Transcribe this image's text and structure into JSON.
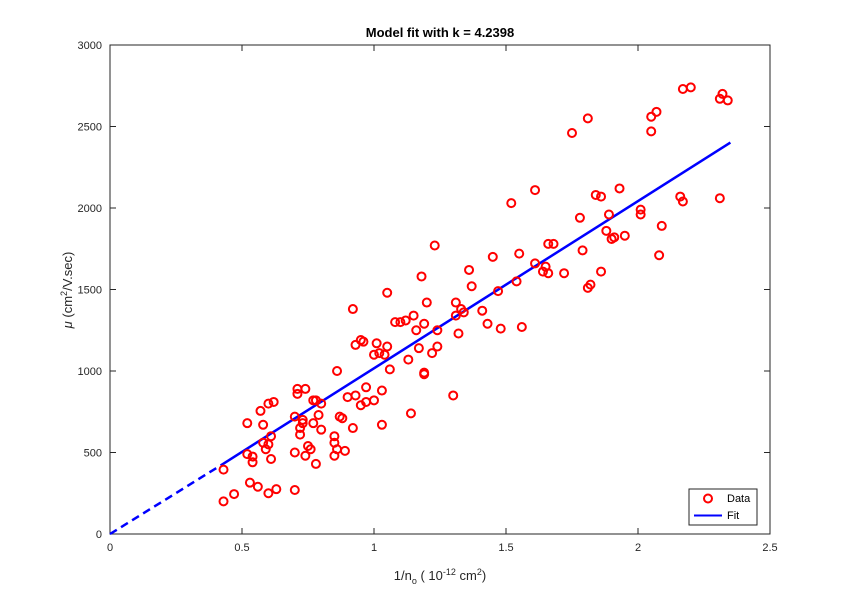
{
  "chart_data": {
    "type": "scatter",
    "title": "Model fit with k = 4.2398",
    "xlabel": {
      "main": "1/n",
      "sub": "o",
      "rest": " ( 10",
      "sup": "-12",
      "unit": " cm",
      "unit_sup": "2",
      "close": ")"
    },
    "ylabel": {
      "mu": "μ",
      "main": " (cm",
      "sup": "2",
      "rest": "/V.sec)"
    },
    "xlim": [
      0,
      2.5
    ],
    "ylim": [
      0,
      3000
    ],
    "xticks": [
      0,
      0.5,
      1,
      1.5,
      2,
      2.5
    ],
    "xtick_labels": [
      "0",
      "0.5",
      "1",
      "1.5",
      "2",
      "2.5"
    ],
    "yticks": [
      0,
      500,
      1000,
      1500,
      2000,
      2500,
      3000
    ],
    "ytick_labels": [
      "0",
      "500",
      "1000",
      "1500",
      "2000",
      "2500",
      "3000"
    ],
    "legend": {
      "position": "bottom-right",
      "entries": [
        "Data",
        "Fit"
      ]
    },
    "colors": {
      "data": "#ff0000",
      "fit": "#0000ff"
    },
    "series": [
      {
        "name": "Data",
        "marker": "circle",
        "points": [
          [
            0.43,
            200
          ],
          [
            0.43,
            395
          ],
          [
            0.47,
            245
          ],
          [
            0.52,
            490
          ],
          [
            0.52,
            680
          ],
          [
            0.53,
            315
          ],
          [
            0.54,
            440
          ],
          [
            0.54,
            475
          ],
          [
            0.56,
            290
          ],
          [
            0.57,
            755
          ],
          [
            0.58,
            560
          ],
          [
            0.58,
            670
          ],
          [
            0.59,
            520
          ],
          [
            0.6,
            550
          ],
          [
            0.6,
            800
          ],
          [
            0.6,
            250
          ],
          [
            0.61,
            600
          ],
          [
            0.61,
            460
          ],
          [
            0.62,
            810
          ],
          [
            0.63,
            275
          ],
          [
            0.7,
            720
          ],
          [
            0.7,
            500
          ],
          [
            0.7,
            270
          ],
          [
            0.71,
            860
          ],
          [
            0.71,
            890
          ],
          [
            0.72,
            650
          ],
          [
            0.72,
            610
          ],
          [
            0.73,
            680
          ],
          [
            0.73,
            700
          ],
          [
            0.74,
            890
          ],
          [
            0.74,
            480
          ],
          [
            0.75,
            540
          ],
          [
            0.76,
            520
          ],
          [
            0.77,
            680
          ],
          [
            0.77,
            820
          ],
          [
            0.78,
            430
          ],
          [
            0.78,
            820
          ],
          [
            0.79,
            730
          ],
          [
            0.8,
            800
          ],
          [
            0.8,
            640
          ],
          [
            0.85,
            480
          ],
          [
            0.85,
            600
          ],
          [
            0.85,
            560
          ],
          [
            0.86,
            1000
          ],
          [
            0.86,
            520
          ],
          [
            0.87,
            720
          ],
          [
            0.88,
            710
          ],
          [
            0.89,
            510
          ],
          [
            0.9,
            840
          ],
          [
            0.92,
            1380
          ],
          [
            0.92,
            650
          ],
          [
            0.93,
            850
          ],
          [
            0.93,
            1160
          ],
          [
            0.95,
            790
          ],
          [
            0.95,
            1190
          ],
          [
            0.96,
            1180
          ],
          [
            0.97,
            900
          ],
          [
            0.97,
            810
          ],
          [
            1.0,
            820
          ],
          [
            1.0,
            1100
          ],
          [
            1.01,
            1170
          ],
          [
            1.02,
            1110
          ],
          [
            1.03,
            880
          ],
          [
            1.03,
            670
          ],
          [
            1.04,
            1100
          ],
          [
            1.05,
            1480
          ],
          [
            1.05,
            1150
          ],
          [
            1.06,
            1010
          ],
          [
            1.08,
            1300
          ],
          [
            1.1,
            1300
          ],
          [
            1.12,
            1310
          ],
          [
            1.13,
            1070
          ],
          [
            1.14,
            740
          ],
          [
            1.15,
            1340
          ],
          [
            1.16,
            1250
          ],
          [
            1.17,
            1140
          ],
          [
            1.18,
            1580
          ],
          [
            1.19,
            980
          ],
          [
            1.19,
            990
          ],
          [
            1.19,
            1290
          ],
          [
            1.2,
            1420
          ],
          [
            1.22,
            1110
          ],
          [
            1.23,
            1770
          ],
          [
            1.24,
            1250
          ],
          [
            1.24,
            1150
          ],
          [
            1.3,
            850
          ],
          [
            1.31,
            1420
          ],
          [
            1.31,
            1340
          ],
          [
            1.32,
            1230
          ],
          [
            1.33,
            1380
          ],
          [
            1.34,
            1360
          ],
          [
            1.36,
            1620
          ],
          [
            1.37,
            1520
          ],
          [
            1.41,
            1370
          ],
          [
            1.43,
            1290
          ],
          [
            1.45,
            1700
          ],
          [
            1.47,
            1490
          ],
          [
            1.48,
            1260
          ],
          [
            1.52,
            2030
          ],
          [
            1.54,
            1550
          ],
          [
            1.55,
            1720
          ],
          [
            1.56,
            1270
          ],
          [
            1.61,
            2110
          ],
          [
            1.61,
            1660
          ],
          [
            1.64,
            1610
          ],
          [
            1.65,
            1640
          ],
          [
            1.66,
            1600
          ],
          [
            1.66,
            1780
          ],
          [
            1.68,
            1780
          ],
          [
            1.72,
            1600
          ],
          [
            1.75,
            2460
          ],
          [
            1.78,
            1940
          ],
          [
            1.79,
            1740
          ],
          [
            1.81,
            2550
          ],
          [
            1.81,
            1510
          ],
          [
            1.82,
            1530
          ],
          [
            1.84,
            2080
          ],
          [
            1.86,
            2070
          ],
          [
            1.86,
            1610
          ],
          [
            1.88,
            1860
          ],
          [
            1.89,
            1960
          ],
          [
            1.9,
            1810
          ],
          [
            1.91,
            1820
          ],
          [
            1.93,
            2120
          ],
          [
            1.95,
            1830
          ],
          [
            2.01,
            1990
          ],
          [
            2.01,
            1960
          ],
          [
            2.05,
            2470
          ],
          [
            2.05,
            2560
          ],
          [
            2.07,
            2590
          ],
          [
            2.08,
            1710
          ],
          [
            2.09,
            1890
          ],
          [
            2.16,
            2070
          ],
          [
            2.17,
            2040
          ],
          [
            2.17,
            2730
          ],
          [
            2.2,
            2740
          ],
          [
            2.31,
            2060
          ],
          [
            2.31,
            2670
          ],
          [
            2.32,
            2700
          ],
          [
            2.34,
            2660
          ]
        ]
      },
      {
        "name": "Fit",
        "segments": [
          {
            "style": "dashed",
            "x": [
              0,
              0.42
            ],
            "y": [
              0,
              421.7
            ]
          },
          {
            "style": "solid",
            "x": [
              0.42,
              2.35
            ],
            "y": [
              421.7,
              2401.5
            ]
          }
        ]
      }
    ]
  }
}
